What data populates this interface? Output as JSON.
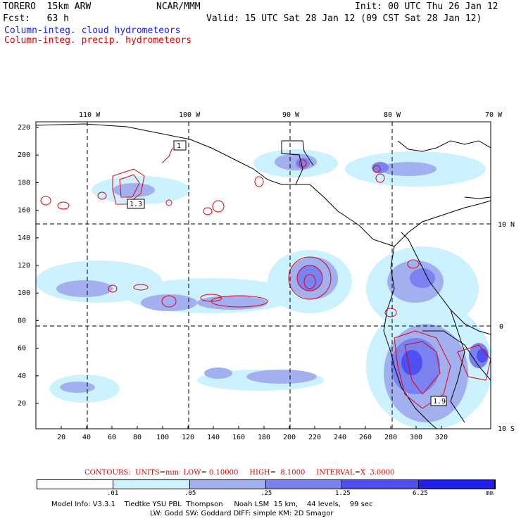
{
  "header": {
    "title": "TORERO  15km ARW",
    "center": "NCAR/MMM",
    "init": "Init: 00 UTC Thu 26 Jan 12",
    "fcst": "Fcst:   63 h",
    "valid": "Valid: 15 UTC Sat 28 Jan 12 (09 CST Sat 28 Jan 12)",
    "field1": "Column-integ. cloud hydrometeors",
    "field2": "Column-integ. precip. hydrometeors"
  },
  "map": {
    "lon_labels": [
      "110 W",
      "100 W",
      "90 W",
      "80 W",
      "70 W"
    ],
    "lat_labels": [
      "10 N",
      "0",
      "10 S"
    ],
    "y_ticks": [
      "220",
      "200",
      "180",
      "160",
      "140",
      "120",
      "100",
      "80",
      "60",
      "40",
      "20"
    ],
    "x_ticks": [
      "20",
      "40",
      "60",
      "80",
      "100",
      "120",
      "140",
      "160",
      "180",
      "200",
      "220",
      "240",
      "260",
      "280",
      "300",
      "320"
    ],
    "boxed_labels": [
      "1",
      "1.3",
      "1.9"
    ],
    "colors": {
      "shade1": "#ccf2ff",
      "shade2": "#a3b0f0",
      "shade3": "#7a82f0",
      "shade4": "#5050f0",
      "shade5": "#2020e8",
      "contour": "#e00010",
      "border": "#000000"
    }
  },
  "contours_line": "CONTOURS:  UNITS=mm  LOW= 0.10000     HIGH=  8.1000     INTERVAL=X  3.0000",
  "colorbar": {
    "ticks": [
      ".01",
      ".05",
      ".25",
      "1.25",
      "6.25"
    ],
    "unit": "mm",
    "colors": [
      "#ffffff",
      "#ccf2ff",
      "#a3b0f0",
      "#7a82f0",
      "#5050f0",
      "#2020e8"
    ]
  },
  "model_info": {
    "line1": "Model Info: V3.3.1    Tiedtke YSU PBL  Thompson     Noah LSM  15 km,    44 levels,    99 sec",
    "line2": "LW: Godd SW: Goddard DIFF: simple KM: 2D Smagor"
  }
}
